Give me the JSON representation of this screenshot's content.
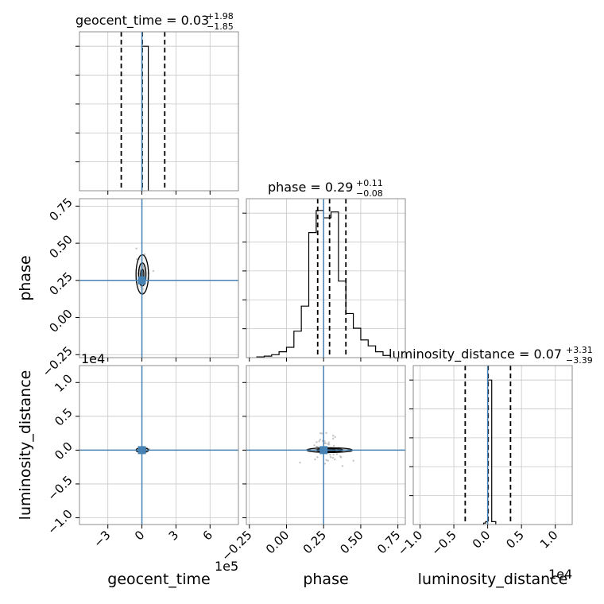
{
  "chart_data": {
    "type": "corner",
    "parameters": [
      "geocent_time",
      "phase",
      "luminosity_distance"
    ],
    "truths": {
      "geocent_time": 0,
      "phase": 0.25,
      "luminosity_distance": 0
    },
    "colors": {
      "truth": "#4682b4",
      "contour": "#000000",
      "samples": "#9e9e9e",
      "grid": "#c8c8c8"
    },
    "titles": [
      {
        "text": "geocent_time = 0.03",
        "sup": "+1.98",
        "sub": "−1.85"
      },
      {
        "text": "phase = 0.29",
        "sup": "+0.11",
        "sub": "−0.08"
      },
      {
        "text": "luminosity_distance = 0.07",
        "sup": "+3.31",
        "sub": "−3.39"
      }
    ],
    "axis_labels": {
      "geocent_time": "geocent_time",
      "phase": "phase",
      "luminosity_distance": "luminosity_distance"
    },
    "ranges": {
      "geocent_time": [
        -5.5,
        8.5
      ],
      "phase": [
        -0.27,
        0.8
      ],
      "luminosity_distance": [
        -1.1,
        1.25
      ]
    },
    "ticks": {
      "geocent_time": [
        -3,
        0,
        3,
        6
      ],
      "phase": [
        -0.25,
        0.0,
        0.25,
        0.5,
        0.75
      ],
      "luminosity_distance": [
        -1.0,
        -0.5,
        0.0,
        0.5,
        1.0
      ]
    },
    "tick_labels": {
      "geocent_time": [
        "−3",
        "0",
        "3",
        "6"
      ],
      "phase": [
        "−0.25",
        "0.00",
        "0.25",
        "0.50",
        "0.75"
      ],
      "luminosity_distance": [
        "−1.0",
        "−0.5",
        "0.0",
        "0.5",
        "1.0"
      ]
    },
    "offsets": {
      "geocent_time_x": "1e5",
      "luminosity_distance_x": "1e4",
      "luminosity_distance_y": "1e4"
    },
    "quantiles": {
      "geocent_time": [
        -1.82,
        0.03,
        2.01
      ],
      "phase": [
        0.21,
        0.29,
        0.4
      ],
      "luminosity_distance": [
        -0.332,
        0.007,
        0.338
      ]
    },
    "hist_geocent_time": {
      "edges": [
        0.0,
        0.56
      ],
      "counts": [
        1.0
      ]
    },
    "hist_phase": {
      "edges": [
        -0.2,
        -0.15,
        -0.1,
        -0.05,
        0.0,
        0.05,
        0.1,
        0.15,
        0.2,
        0.25,
        0.3,
        0.35,
        0.4,
        0.45,
        0.5,
        0.55,
        0.6,
        0.65,
        0.7
      ],
      "counts": [
        0.005,
        0.01,
        0.02,
        0.04,
        0.07,
        0.18,
        0.35,
        0.85,
        1.0,
        0.95,
        0.99,
        0.52,
        0.3,
        0.2,
        0.12,
        0.08,
        0.04,
        0.015
      ]
    },
    "hist_luminosity_distance": {
      "edges": [
        -0.06,
        -0.03,
        0.0,
        0.06,
        0.12
      ],
      "counts": [
        0.01,
        0.02,
        1.0,
        0.02
      ]
    },
    "hist_ylim": {
      "geocent_time": [
        0,
        1.1
      ],
      "phase": [
        0,
        1.08
      ],
      "luminosity_distance": [
        0,
        1.1
      ]
    }
  }
}
